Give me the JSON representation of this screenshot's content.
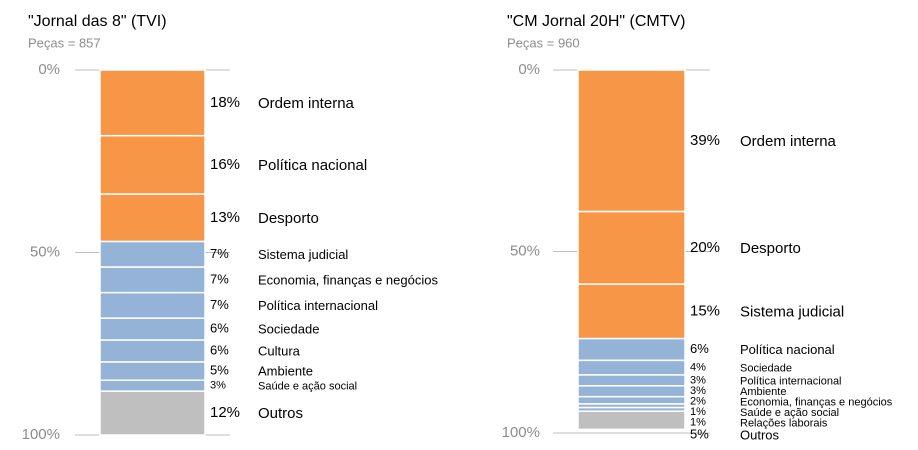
{
  "chart_data": [
    {
      "type": "stacked-column",
      "title": "\"Jornal das 8\" (TVI)",
      "subtitle": "Peças = 857",
      "ylim": [
        0,
        100
      ],
      "yticks": [
        {
          "value": 0,
          "label": "0%"
        },
        {
          "value": 50,
          "label": "50%"
        },
        {
          "value": 100,
          "label": "100%"
        }
      ],
      "series": [
        {
          "name": "Ordem interna",
          "color": "#f79646",
          "values": [
            18
          ],
          "value_labels": [
            "18%"
          ]
        },
        {
          "name": "Política nacional",
          "color": "#f79646",
          "values": [
            16
          ],
          "value_labels": [
            "16%"
          ]
        },
        {
          "name": "Desporto",
          "color": "#f79646",
          "values": [
            13
          ],
          "value_labels": [
            "13%"
          ]
        },
        {
          "name": "Sistema judicial",
          "color": "#95b3d7",
          "values": [
            7
          ],
          "value_labels": [
            "7%"
          ]
        },
        {
          "name": "Economia, finanças e negócios",
          "color": "#95b3d7",
          "values": [
            7
          ],
          "value_labels": [
            "7%"
          ]
        },
        {
          "name": "Política internacional",
          "color": "#95b3d7",
          "values": [
            7
          ],
          "value_labels": [
            "7%"
          ]
        },
        {
          "name": "Sociedade",
          "color": "#95b3d7",
          "values": [
            6
          ],
          "value_labels": [
            "6%"
          ]
        },
        {
          "name": "Cultura",
          "color": "#95b3d7",
          "values": [
            6
          ],
          "value_labels": [
            "6%"
          ]
        },
        {
          "name": "Ambiente",
          "color": "#95b3d7",
          "values": [
            5
          ],
          "value_labels": [
            "5%"
          ]
        },
        {
          "name": "Saúde e ação social",
          "color": "#95b3d7",
          "values": [
            3
          ],
          "value_labels": [
            "3%"
          ]
        },
        {
          "name": "Outros",
          "color": "#bfbfbf",
          "values": [
            12
          ],
          "value_labels": [
            "12%"
          ]
        }
      ]
    },
    {
      "type": "stacked-column",
      "title": "\"CM Jornal 20H\" (CMTV)",
      "subtitle": "Peças = 960",
      "ylim": [
        0,
        100
      ],
      "yticks": [
        {
          "value": 0,
          "label": "0%"
        },
        {
          "value": 50,
          "label": "50%"
        },
        {
          "value": 100,
          "label": "100%"
        }
      ],
      "series": [
        {
          "name": "Ordem interna",
          "color": "#f79646",
          "values": [
            39
          ],
          "value_labels": [
            "39%"
          ]
        },
        {
          "name": "Desporto",
          "color": "#f79646",
          "values": [
            20
          ],
          "value_labels": [
            "20%"
          ]
        },
        {
          "name": "Sistema judicial",
          "color": "#f79646",
          "values": [
            15
          ],
          "value_labels": [
            "15%"
          ]
        },
        {
          "name": "Política nacional",
          "color": "#95b3d7",
          "values": [
            6
          ],
          "value_labels": [
            "6%"
          ]
        },
        {
          "name": "Sociedade",
          "color": "#95b3d7",
          "values": [
            4
          ],
          "value_labels": [
            "4%"
          ]
        },
        {
          "name": "Política internacional",
          "color": "#95b3d7",
          "values": [
            3
          ],
          "value_labels": [
            "3%"
          ]
        },
        {
          "name": "Ambiente",
          "color": "#95b3d7",
          "values": [
            3
          ],
          "value_labels": [
            "3%"
          ]
        },
        {
          "name": "Economia, finanças e negócios",
          "color": "#95b3d7",
          "values": [
            2
          ],
          "value_labels": [
            "2%"
          ]
        },
        {
          "name": "Saúde e ação social",
          "color": "#95b3d7",
          "values": [
            1
          ],
          "value_labels": [
            "1%"
          ]
        },
        {
          "name": "Relações laborais",
          "color": "#95b3d7",
          "values": [
            1
          ],
          "value_labels": [
            "1%"
          ]
        },
        {
          "name": "Outros",
          "color": "#bfbfbf",
          "values": [
            5
          ],
          "value_labels": [
            "5%"
          ]
        }
      ]
    }
  ]
}
